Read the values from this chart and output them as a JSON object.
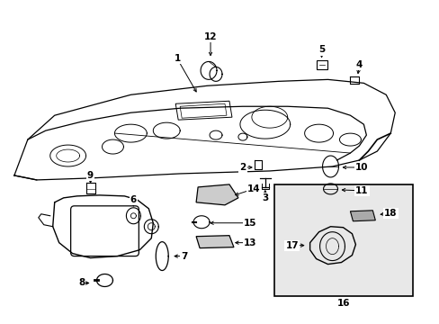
{
  "bg_color": "#ffffff",
  "line_color": "#000000",
  "fig_w": 4.89,
  "fig_h": 3.6,
  "dpi": 100
}
